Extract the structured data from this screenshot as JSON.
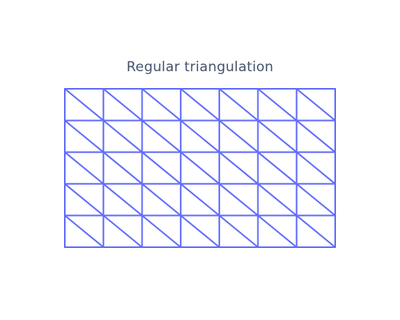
{
  "title": "Regular triangulation",
  "mesh": {
    "columns": 7,
    "rows": 5,
    "diagonal": "top-left-to-bottom-right",
    "line_color": "#636efa",
    "background": "#ffffff"
  }
}
